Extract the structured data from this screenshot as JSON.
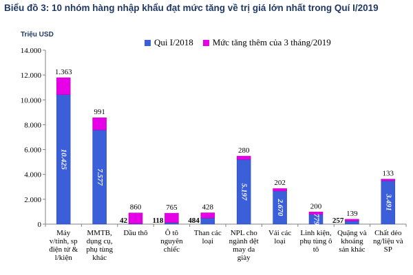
{
  "title": "Biểu đồ 3: 10 nhóm hàng nhập khẩu đạt mức tăng về trị giá lớn nhất trong Quí I/2019",
  "unit_label": "Triệu USD",
  "colors": {
    "base": "#3a5fd9",
    "increase": "#e600e6",
    "axis": "#808080",
    "title": "#1f3864"
  },
  "chart_data": {
    "type": "bar",
    "stacked": true,
    "title": "Biểu đồ 3: 10 nhóm hàng nhập khẩu đạt mức tăng về trị giá lớn nhất trong Quí I/2019",
    "ylabel": "Triệu USD",
    "ylim": [
      0,
      14000
    ],
    "yticks": [
      "0",
      "2.000",
      "4.000",
      "6.000",
      "8.000",
      "10.000",
      "12.000",
      "14.000"
    ],
    "legend_position": "top",
    "categories": [
      [
        "Máy",
        "v/tính, sp",
        "điện tử &",
        "l/kiện"
      ],
      [
        "MMTB,",
        "dụng cụ,",
        "phụ tùng",
        "khác"
      ],
      [
        "Dầu thô"
      ],
      [
        "Ô tô",
        "nguyên",
        "chiếc"
      ],
      [
        "Than các",
        "loại"
      ],
      [
        "NPL cho",
        "ngành dệt",
        "may da",
        "giày"
      ],
      [
        "Vải các",
        "loại"
      ],
      [
        "Linh kiện,",
        "phụ tùng ô",
        "tô"
      ],
      [
        "Quặng và",
        "khoáng",
        "sản khác"
      ],
      [
        "Chất dẻo",
        "ng/liệu và",
        "SP"
      ]
    ],
    "series": [
      {
        "name": "Qui I/2018",
        "values": [
          10425,
          7577,
          42,
          118,
          484,
          5197,
          2670,
          779,
          257,
          3491
        ],
        "labels": [
          "10.425",
          "7.577",
          "42",
          "118",
          "484",
          "5.197",
          "2.670",
          "779",
          "257",
          "3.491"
        ]
      },
      {
        "name": "Mức tăng thêm của 3 tháng/2019",
        "values": [
          1363,
          991,
          860,
          765,
          428,
          280,
          202,
          200,
          139,
          133
        ],
        "labels": [
          "1.363",
          "991",
          "860",
          "765",
          "428",
          "280",
          "202",
          "200",
          "139",
          "133"
        ]
      }
    ]
  }
}
